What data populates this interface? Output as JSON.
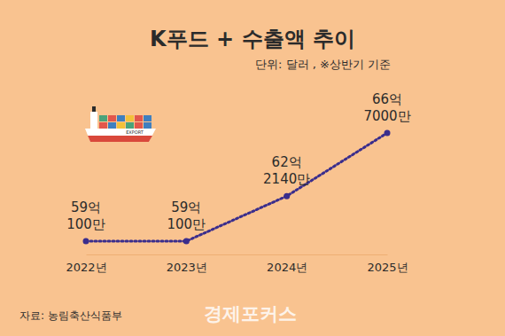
{
  "chart_data": {
    "type": "line",
    "title": "K푸드 + 수출액 추이",
    "subtitle": "단위: 달러 , ※상반기 기준",
    "source": "자료: 농림축산식품부",
    "brand": "경제포커스",
    "ship_label": "EXPORT",
    "categories": [
      "2022년",
      "2023년",
      "2024년",
      "2025년"
    ],
    "values": [
      5901000000,
      5901000000,
      6221400000,
      6670000000
    ],
    "value_labels": [
      "59억\n100만",
      "59억\n100만",
      "62억\n2140만",
      "66억\n7000만"
    ],
    "color": "#3a2d8c",
    "line_style": "dotted",
    "marker": "circle",
    "data_labels": true,
    "tick_labels": "x",
    "grid": false
  }
}
